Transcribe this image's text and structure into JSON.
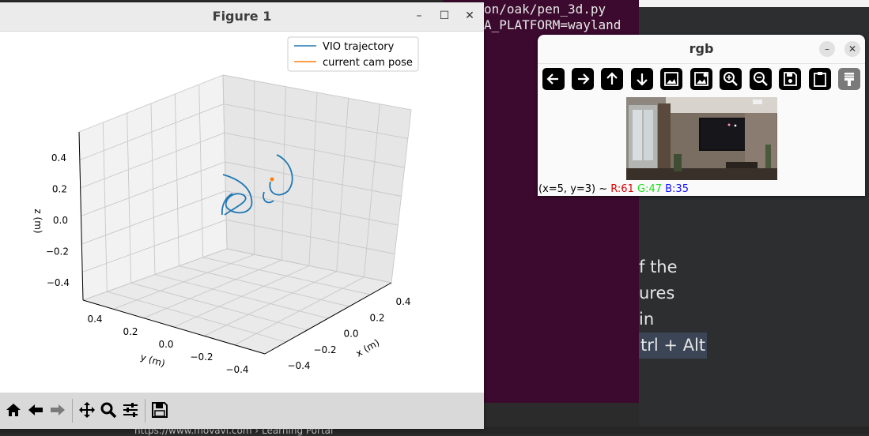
{
  "terminal": {
    "lines": [
      "on/oak/pen_3d.py",
      "A_PLATFORM=wayland"
    ]
  },
  "background_doc": {
    "lines": [
      "f the",
      "ures",
      "in",
      "trl + Alt"
    ]
  },
  "browser_url": "https://www.movavi.com › Learning Portal",
  "figure_window": {
    "title": "Figure 1",
    "controls": {
      "minimize": "–",
      "maximize": "☐",
      "close": "✕"
    },
    "plot": {
      "legend": [
        "VIO trajectory",
        "current cam pose"
      ],
      "xlabel": "x (m)",
      "ylabel": "y (m)",
      "zlabel": "z (m)"
    },
    "toolbar": [
      "home-icon",
      "back-arrow-icon",
      "forward-arrow-icon",
      "pan-icon",
      "zoom-icon",
      "subplots-icon",
      "save-icon"
    ]
  },
  "chart_data": {
    "type": "line",
    "projection": "3d",
    "series": [
      {
        "name": "VIO trajectory",
        "color": "#1f77b4"
      },
      {
        "name": "current cam pose",
        "color": "#ff7f0e"
      }
    ],
    "x_ticks": [
      "−0.4",
      "−0.2",
      "0.0",
      "0.2",
      "0.4"
    ],
    "y_ticks": [
      "0.4",
      "0.2",
      "0.0",
      "−0.2",
      "−0.4"
    ],
    "z_ticks": [
      "0.4",
      "0.2",
      "0.0",
      "−0.2",
      "−0.4"
    ],
    "xlim": [
      -0.5,
      0.5
    ],
    "ylim": [
      -0.5,
      0.5
    ],
    "zlim": [
      -0.5,
      0.5
    ],
    "grid": true,
    "legend_position": "top-right"
  },
  "rgb_window": {
    "title": "rgb",
    "controls": {
      "minimize": "–",
      "close": "✕"
    },
    "toolbar": [
      "left-arrow-icon",
      "right-arrow-icon",
      "up-arrow-icon",
      "down-arrow-icon",
      "image-icon",
      "image-settings-icon",
      "zoom-in-icon",
      "zoom-out-icon",
      "save-icon",
      "clipboard-icon",
      "properties-icon"
    ],
    "status": {
      "coords": "(x=5, y=3) ~ ",
      "r": "R:61",
      "g": "G:47",
      "b": "B:35"
    }
  },
  "colors": {
    "terminal_bg": "#3b0a2e",
    "trajectory": "#1f77b4",
    "cam_pose": "#ff7f0e",
    "status_r": "#ff0000",
    "status_g": "#00cc00",
    "status_b": "#0000ff"
  }
}
